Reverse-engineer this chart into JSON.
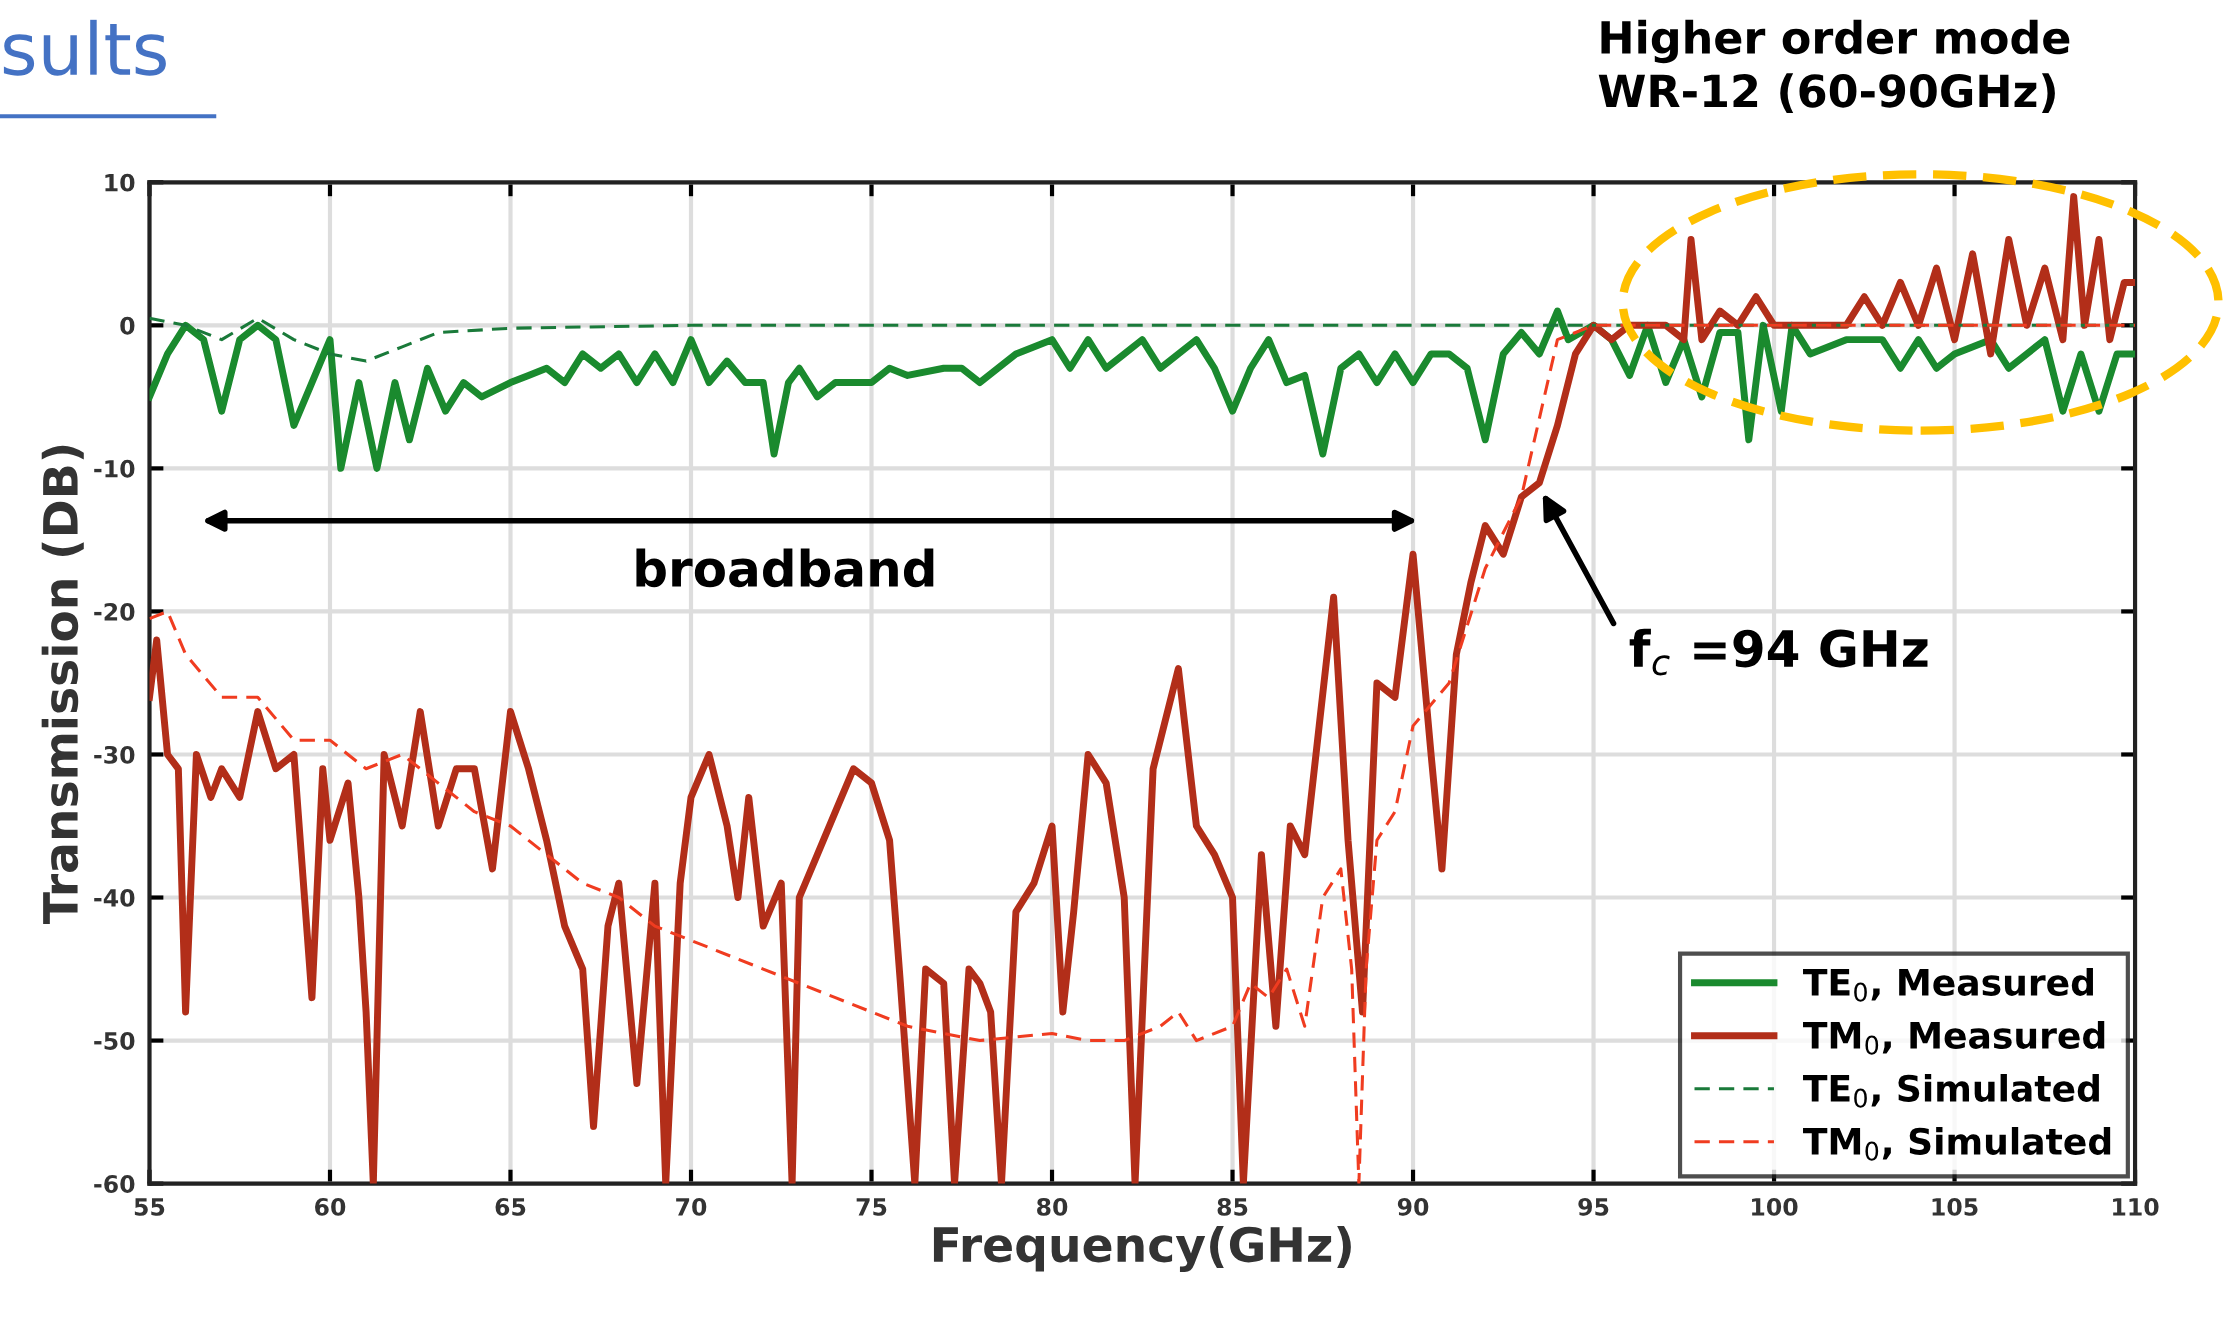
{
  "chart_data": {
    "type": "line",
    "xlabel": "Frequency(GHz)",
    "ylabel": "Transmission (DB)",
    "xlim": [
      55,
      110
    ],
    "xticks": [
      55,
      60,
      65,
      70,
      75,
      80,
      85,
      90,
      95,
      100,
      105,
      110
    ],
    "ylim": [
      -60,
      10
    ],
    "yticks": [
      -60,
      -50,
      -40,
      -30,
      -20,
      -10,
      0,
      10
    ],
    "grid": true,
    "legend": "bottom right",
    "marker": "none",
    "annotations": [
      "sults",
      "Higher order mode\nWR-12 (60-90GHz)",
      "broadband",
      "f$_{c}$ =94 GHz"
    ],
    "series": [
      {
        "name": "TE$_{0}$, Measured",
        "color": "#1a8a2e",
        "line_style": "solid",
        "x": [
          55,
          55.5,
          56,
          56.5,
          57,
          57.5,
          58,
          58.5,
          59,
          59.5,
          60,
          60.3,
          60.8,
          61.3,
          61.8,
          62.2,
          62.7,
          63.2,
          63.7,
          64.2,
          65,
          65.5,
          66,
          66.5,
          67,
          67.5,
          68,
          68.5,
          69,
          69.5,
          70,
          70.5,
          71,
          71.5,
          72,
          72.3,
          72.7,
          73,
          73.5,
          74,
          75,
          75.5,
          76,
          77,
          77.5,
          78,
          79,
          80,
          80.5,
          81,
          81.5,
          82,
          82.5,
          83,
          84,
          84.5,
          85,
          85.5,
          86,
          86.5,
          87,
          87.5,
          88,
          88.5,
          89,
          89.5,
          90,
          90.5,
          91,
          91.5,
          92,
          92.5,
          93,
          93.5,
          94,
          94.3,
          95,
          95.5,
          96,
          96.5,
          97,
          97.5,
          98,
          98.5,
          99,
          99.3,
          99.7,
          100.2,
          100.5,
          101,
          102,
          103,
          103.5,
          104,
          104.5,
          105,
          106,
          106.5,
          107,
          107.5,
          108,
          108.5,
          109,
          109.5,
          110
        ],
        "values": [
          -5,
          -2,
          0,
          -1,
          -6,
          -1,
          0,
          -1,
          -7,
          -4,
          -1,
          -10,
          -4,
          -10,
          -4,
          -8,
          -3,
          -6,
          -4,
          -5,
          -4,
          -3.5,
          -3,
          -4,
          -2,
          -3,
          -2,
          -4,
          -2,
          -4,
          -1,
          -4,
          -2.5,
          -4,
          -4,
          -9,
          -4,
          -3,
          -5,
          -4,
          -4,
          -3,
          -3.5,
          -3,
          -3,
          -4,
          -2,
          -1,
          -3,
          -1,
          -3,
          -2,
          -1,
          -3,
          -1,
          -3,
          -6,
          -3,
          -1,
          -4,
          -3.5,
          -9,
          -3,
          -2,
          -4,
          -2,
          -4,
          -2,
          -2,
          -3,
          -8,
          -2,
          -0.5,
          -2,
          1,
          -1,
          0,
          -1,
          -3.5,
          0,
          -4,
          -1,
          -5,
          -0.5,
          -0.5,
          -8,
          0,
          -6,
          0,
          -2,
          -1,
          -1,
          -3,
          -1,
          -3,
          -2,
          -1,
          -3,
          -2,
          -1,
          -6,
          -2,
          -6,
          -2,
          -2
        ]
      },
      {
        "name": "TM$_{0}$, Measured",
        "color": "#b22e19",
        "line_style": "solid",
        "x": [
          55,
          55.2,
          55.5,
          55.8,
          56,
          56.3,
          56.7,
          57,
          57.5,
          58,
          58.5,
          59,
          59.5,
          59.8,
          60,
          60.5,
          60.8,
          61,
          61.2,
          61.5,
          62,
          62.5,
          63,
          63.5,
          64,
          64.5,
          65,
          65.5,
          66,
          66.5,
          67,
          67.3,
          67.7,
          68,
          68.5,
          69,
          69.3,
          69.7,
          70,
          70.5,
          71,
          71.3,
          71.6,
          72,
          72.5,
          72.8,
          73,
          73.5,
          74,
          74.5,
          75,
          75.5,
          75.8,
          76.2,
          76.5,
          77,
          77.3,
          77.7,
          78,
          78.3,
          78.6,
          79,
          79.5,
          80,
          80.3,
          80.6,
          81,
          81.5,
          82,
          82.3,
          82.8,
          83.5,
          84,
          84.5,
          85,
          85.3,
          85.8,
          86.2,
          86.6,
          87,
          87.4,
          87.8,
          88.2,
          88.6,
          89,
          89.5,
          90,
          90.5,
          90.8,
          91.2,
          91.6,
          92,
          92.5,
          93,
          93.5,
          94,
          94.5,
          95,
          95.5,
          96,
          97,
          97.5,
          97.7,
          98,
          98.5,
          99,
          99.5,
          100,
          101,
          102,
          102.5,
          103,
          103.5,
          104,
          104.5,
          105,
          105.5,
          106,
          106.5,
          107,
          107.5,
          108,
          108.3,
          108.6,
          109,
          109.3,
          109.7,
          110
        ],
        "values": [
          -26,
          -22,
          -30,
          -31,
          -48,
          -30,
          -33,
          -31,
          -33,
          -27,
          -31,
          -30,
          -47,
          -31,
          -36,
          -32,
          -40,
          -48,
          -60,
          -30,
          -35,
          -27,
          -35,
          -31,
          -31,
          -38,
          -27,
          -31,
          -36,
          -42,
          -45,
          -56,
          -42,
          -39,
          -53,
          -39,
          -60,
          -39,
          -33,
          -30,
          -35,
          -40,
          -33,
          -42,
          -39,
          -60,
          -40,
          -37,
          -34,
          -31,
          -32,
          -36,
          -46,
          -60,
          -45,
          -46,
          -60,
          -45,
          -46,
          -48,
          -60,
          -41,
          -39,
          -35,
          -48,
          -41,
          -30,
          -32,
          -40,
          -60,
          -31,
          -24,
          -35,
          -37,
          -40,
          -60,
          -37,
          -49,
          -35,
          -37,
          -28,
          -19,
          -36,
          -48,
          -25,
          -26,
          -16,
          -30,
          -38,
          -23,
          -18,
          -14,
          -16,
          -12,
          -11,
          -7,
          -2,
          0,
          -1,
          0,
          0,
          -1,
          6,
          -1,
          1,
          0,
          2,
          0,
          0,
          0,
          2,
          0,
          3,
          0,
          4,
          -1,
          5,
          -2,
          6,
          0,
          4,
          -1,
          9,
          0,
          6,
          -1,
          3,
          3
        ]
      },
      {
        "name": "TE$_{0}$, Simulated",
        "color": "#1a7a3a",
        "line_style": "dashed",
        "x": [
          55,
          56,
          57,
          58,
          59,
          60,
          61,
          62,
          63,
          65,
          70,
          80,
          90,
          95,
          100,
          110
        ],
        "values": [
          0.5,
          0,
          -1,
          0.5,
          -1,
          -2,
          -2.5,
          -1.5,
          -0.5,
          -0.2,
          0,
          0,
          0,
          0,
          0,
          0
        ]
      },
      {
        "name": "TM$_{0}$, Simulated",
        "color": "#f03c20",
        "line_style": "dashed",
        "x": [
          55,
          55.5,
          56,
          57,
          58,
          59,
          60,
          61,
          62,
          63,
          64,
          65,
          66,
          67,
          68,
          69,
          70,
          72,
          74,
          76,
          78,
          80,
          81,
          82,
          83,
          83.5,
          84,
          85,
          85.5,
          86,
          86.5,
          87,
          87.5,
          88,
          88.3,
          88.5,
          88.7,
          89,
          89.5,
          90,
          91,
          92,
          93,
          94,
          95,
          96,
          97,
          98,
          100,
          105,
          110
        ],
        "values": [
          -20.5,
          -20,
          -23,
          -26,
          -26,
          -29,
          -29,
          -31,
          -30,
          -32,
          -34,
          -35,
          -37,
          -39,
          -40,
          -42,
          -43,
          -45,
          -47,
          -49,
          -50,
          -49.5,
          -50,
          -50,
          -49,
          -48,
          -50,
          -49,
          -46,
          -47,
          -45,
          -49,
          -40,
          -38,
          -45,
          -60,
          -45,
          -36,
          -34,
          -28,
          -25,
          -17,
          -12,
          -1,
          0,
          0,
          0,
          0,
          0,
          0,
          0
        ]
      }
    ]
  }
}
